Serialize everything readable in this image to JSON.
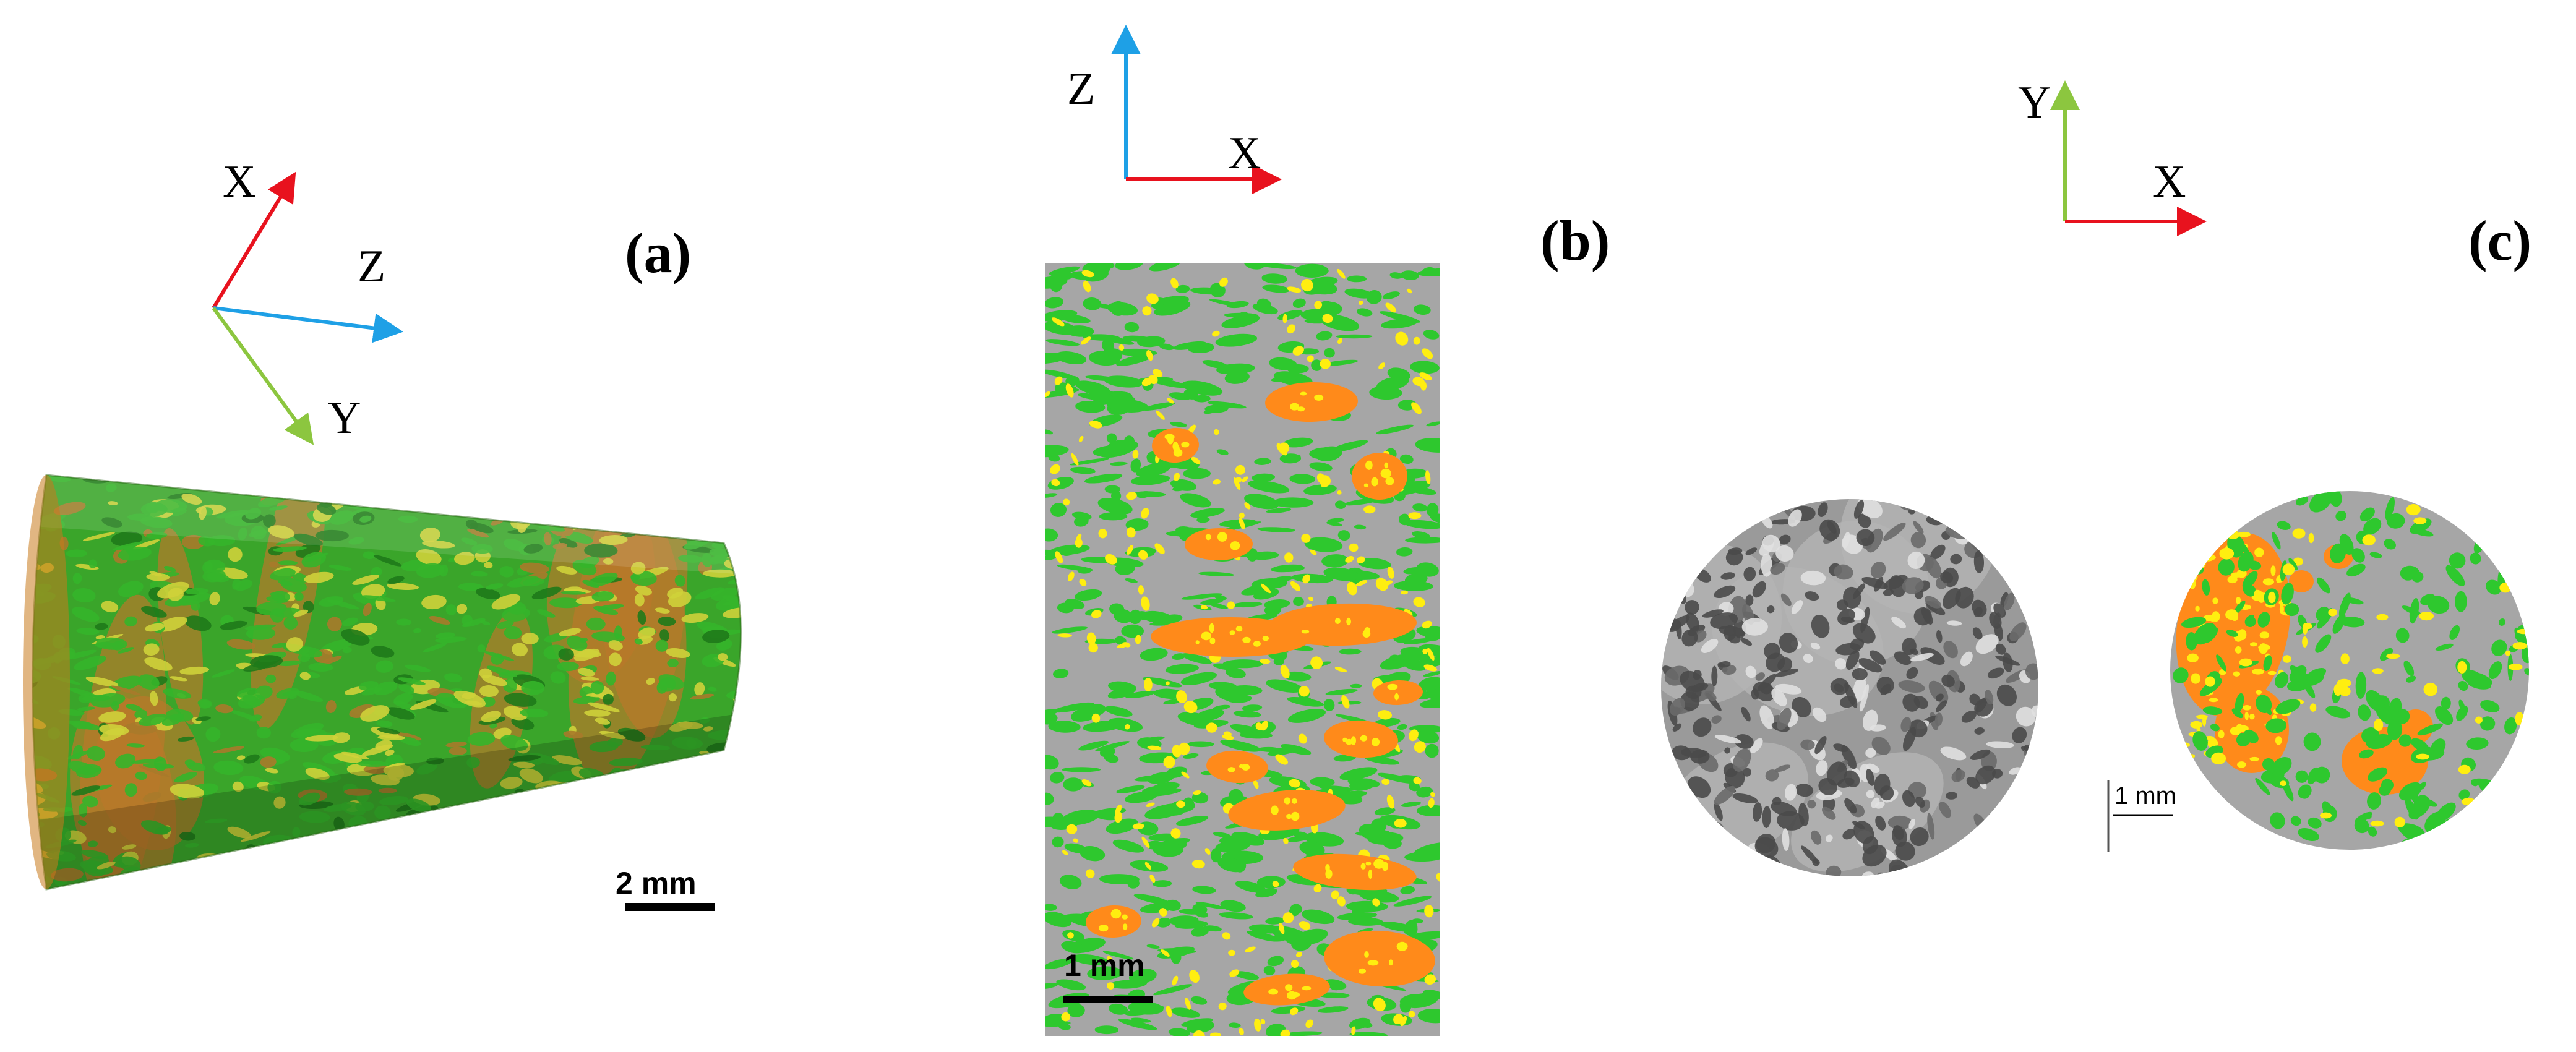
{
  "panels": {
    "a": {
      "label": "(a)",
      "axes": {
        "x": "X",
        "y": "Y",
        "z": "Z"
      },
      "scale_bar": "2 mm"
    },
    "b": {
      "label": "(b)",
      "axes": {
        "z": "Z",
        "x": "X"
      },
      "scale_bar": "1 mm"
    },
    "c": {
      "label": "(c)",
      "axes": {
        "y": "Y",
        "x": "X"
      },
      "scale_bar": "1 mm"
    }
  },
  "colors": {
    "x_axis": "#e8121e",
    "y_axis": "#8cc63f",
    "z_axis": "#1ea0e6",
    "green_phase": "#2ec82e",
    "yellow_phase": "#ffee10",
    "orange_phase": "#ff8a1a",
    "gray_phase": "#a6a6a6"
  }
}
